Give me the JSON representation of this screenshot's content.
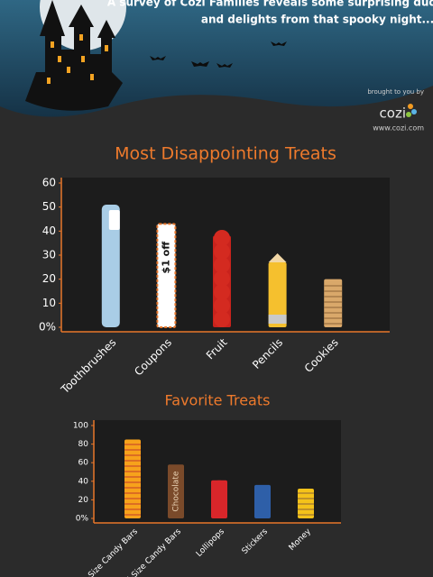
{
  "header": {
    "line1": "A survey of Cozi Families reveals some surprising duds",
    "line2": "and delights from that spooky night...",
    "sponsor": "brought to you by",
    "brand": "cozi",
    "url": "www.cozi.com"
  },
  "chart_data": [
    {
      "type": "bar",
      "title": "Most Disappointing Treats",
      "categories": [
        "Toothbrushes",
        "Coupons",
        "Fruit",
        "Pencils",
        "Cookies"
      ],
      "values": [
        51,
        43,
        38,
        27,
        20
      ],
      "colors": [
        "#a9cde6",
        "#ffffff",
        "#c8221c",
        "#f5c02e",
        "#d9a86a"
      ],
      "annotations": [
        "$1 off"
      ],
      "ylim": [
        0,
        60
      ],
      "yticks": [
        {
          "value": 0,
          "label": "0%"
        },
        10,
        20,
        30,
        40,
        50,
        60
      ]
    },
    {
      "type": "bar",
      "title": "Favorite Treats",
      "categories": [
        "Fun-Size Candy Bars",
        "Full-Size Candy Bars",
        "Lollipops",
        "Stickers",
        "Money"
      ],
      "values": [
        85,
        58,
        41,
        36,
        32
      ],
      "colors": [
        "#f7a21b",
        "#7a4a2a",
        "#d8262a",
        "#2e5fa8",
        "#f4c21a"
      ],
      "annotations": [
        "Chocolate"
      ],
      "ylim": [
        0,
        100
      ],
      "yticks": [
        {
          "value": 0,
          "label": "0%"
        },
        20,
        40,
        60,
        80,
        100
      ]
    }
  ]
}
